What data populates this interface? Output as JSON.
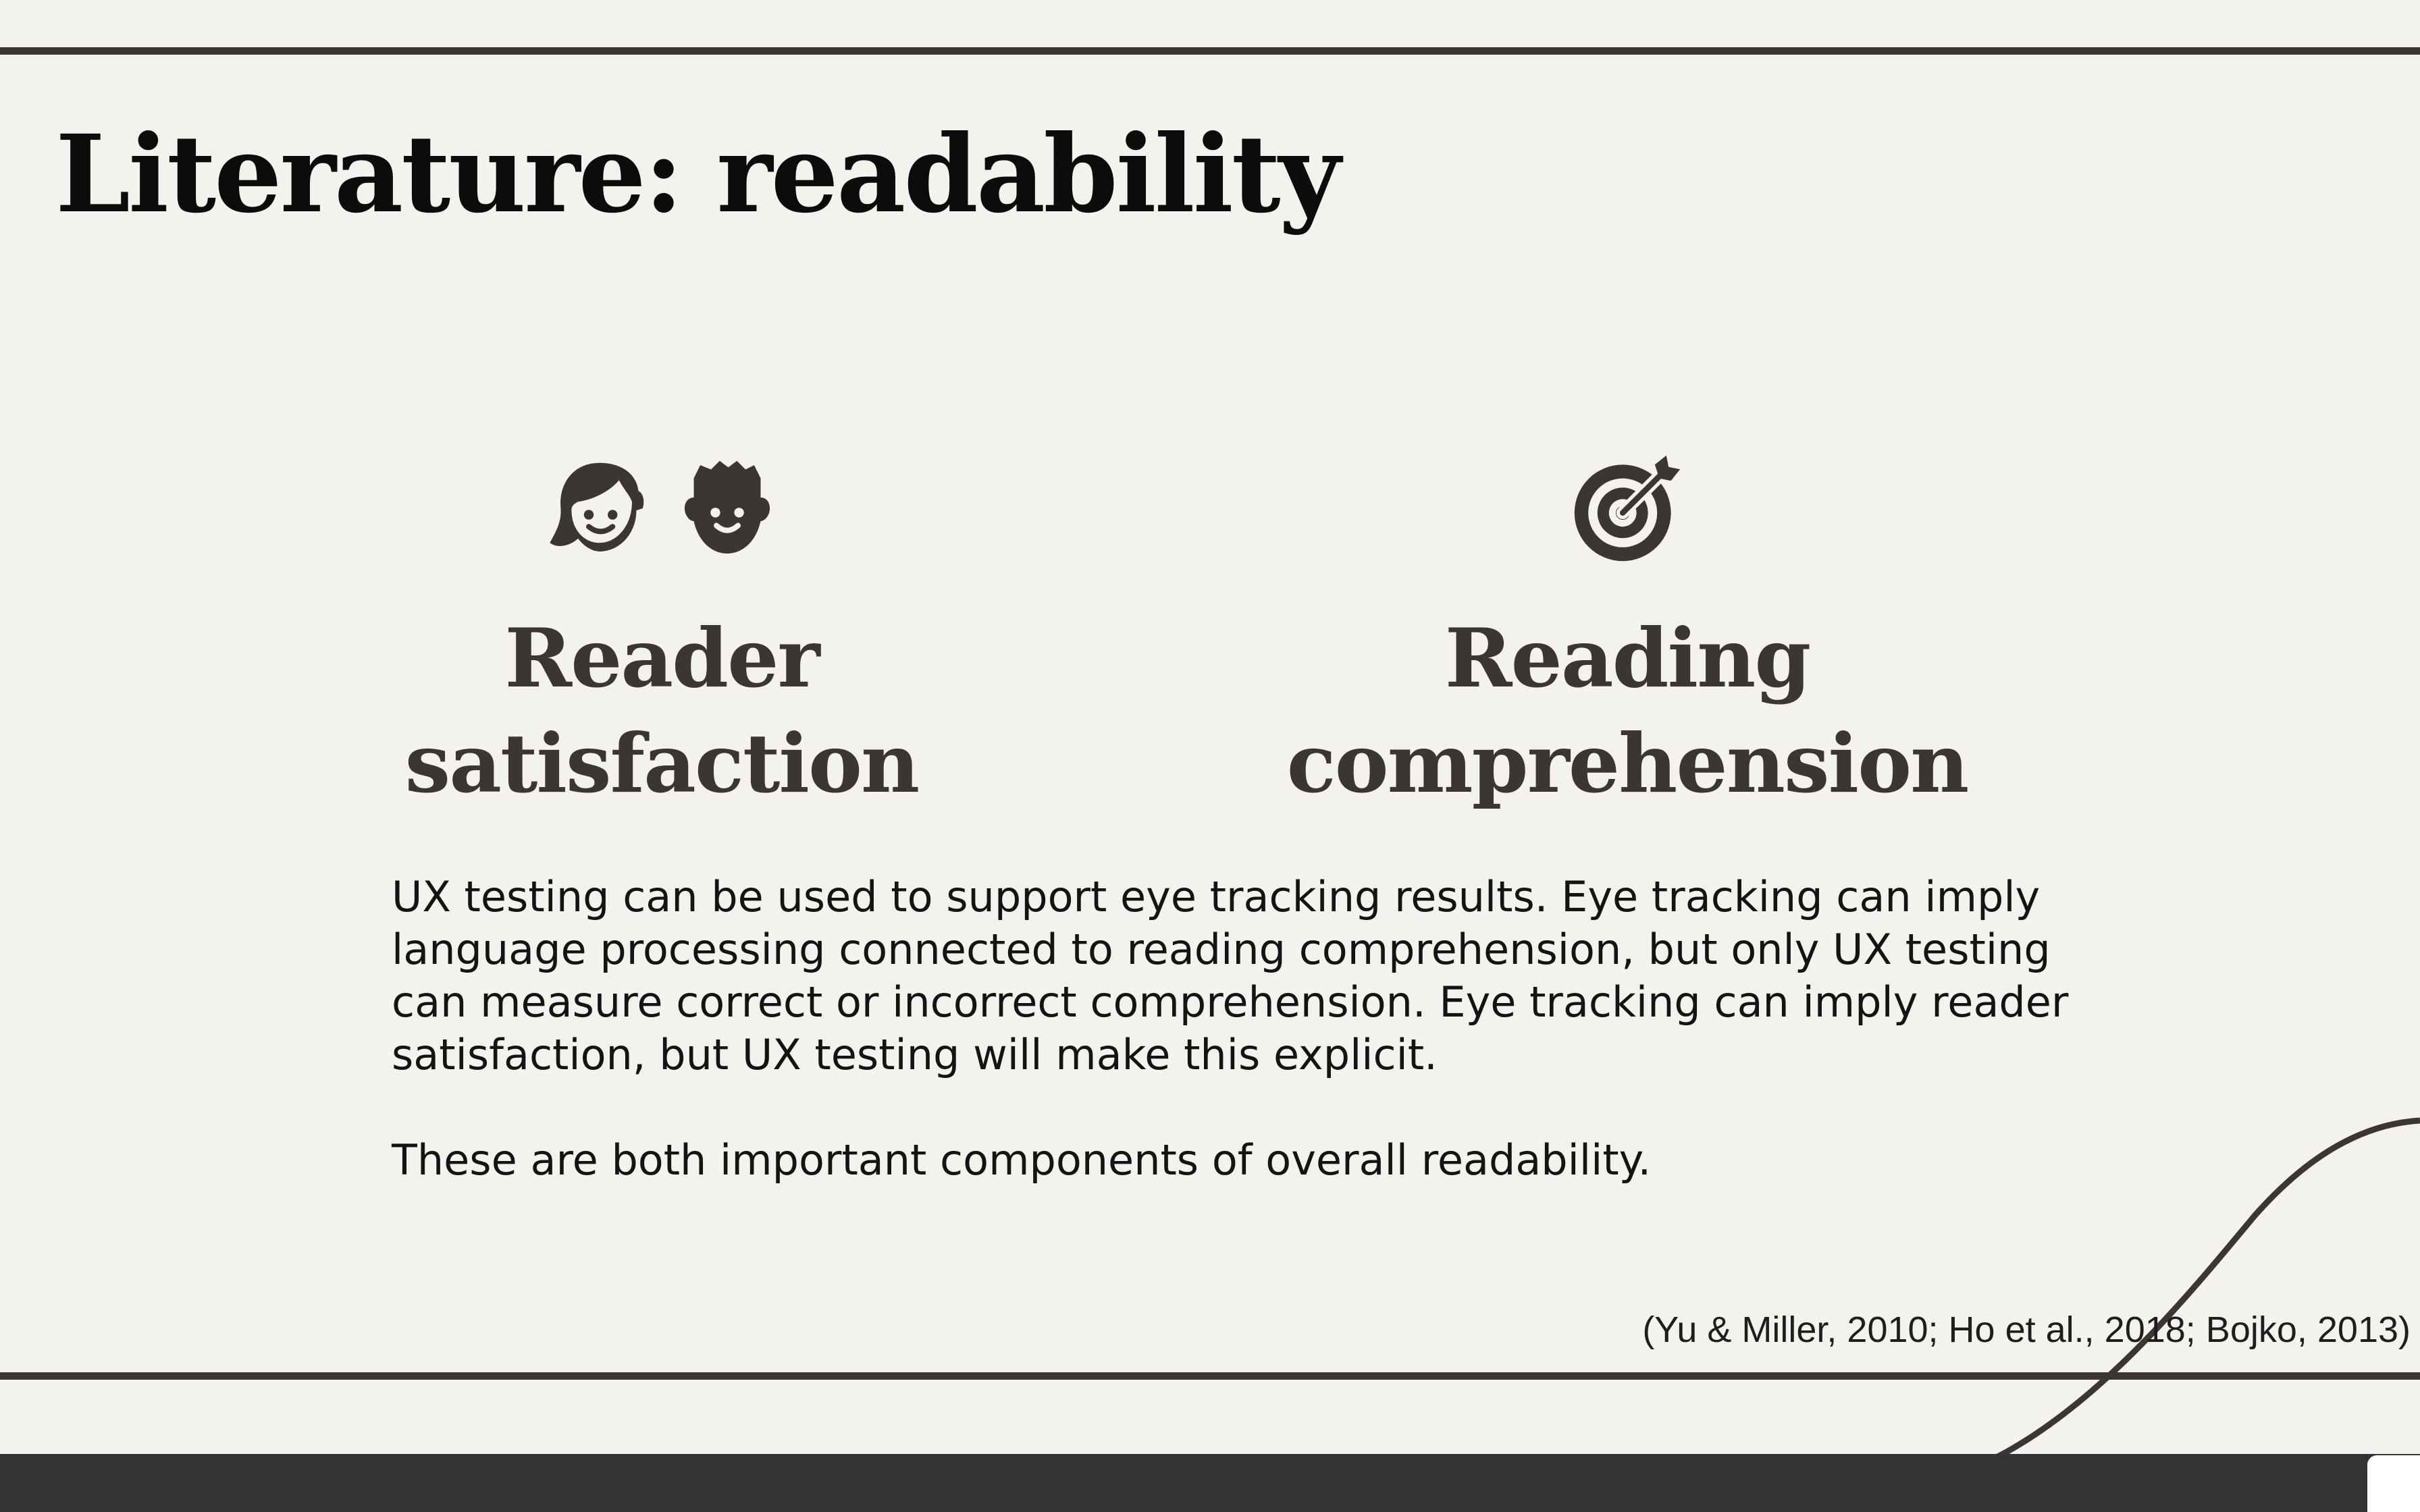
{
  "slide": {
    "title": "Literature: readability",
    "columns": [
      {
        "icons": [
          "woman-face-icon",
          "man-face-icon"
        ],
        "heading_line1": "Reader",
        "heading_line2": "satisfaction"
      },
      {
        "icons": [
          "target-icon"
        ],
        "heading_line1": "Reading",
        "heading_line2": "comprehension"
      }
    ],
    "body_paragraph_1": "UX testing can be used to support eye tracking results. Eye tracking can imply language processing connected to reading comprehension, but only UX testing can measure correct or incorrect comprehension. Eye tracking can imply reader satisfaction, but UX testing will make this explicit.",
    "body_paragraph_2": "These are both important components of overall readability.",
    "citation": "(Yu & Miller, 2010; Ho et al., 2018; Bojko, 2013)"
  },
  "colors": {
    "background": "#f4f2ee",
    "accent_dark": "#3b3533",
    "bottom_bar": "#333333"
  }
}
